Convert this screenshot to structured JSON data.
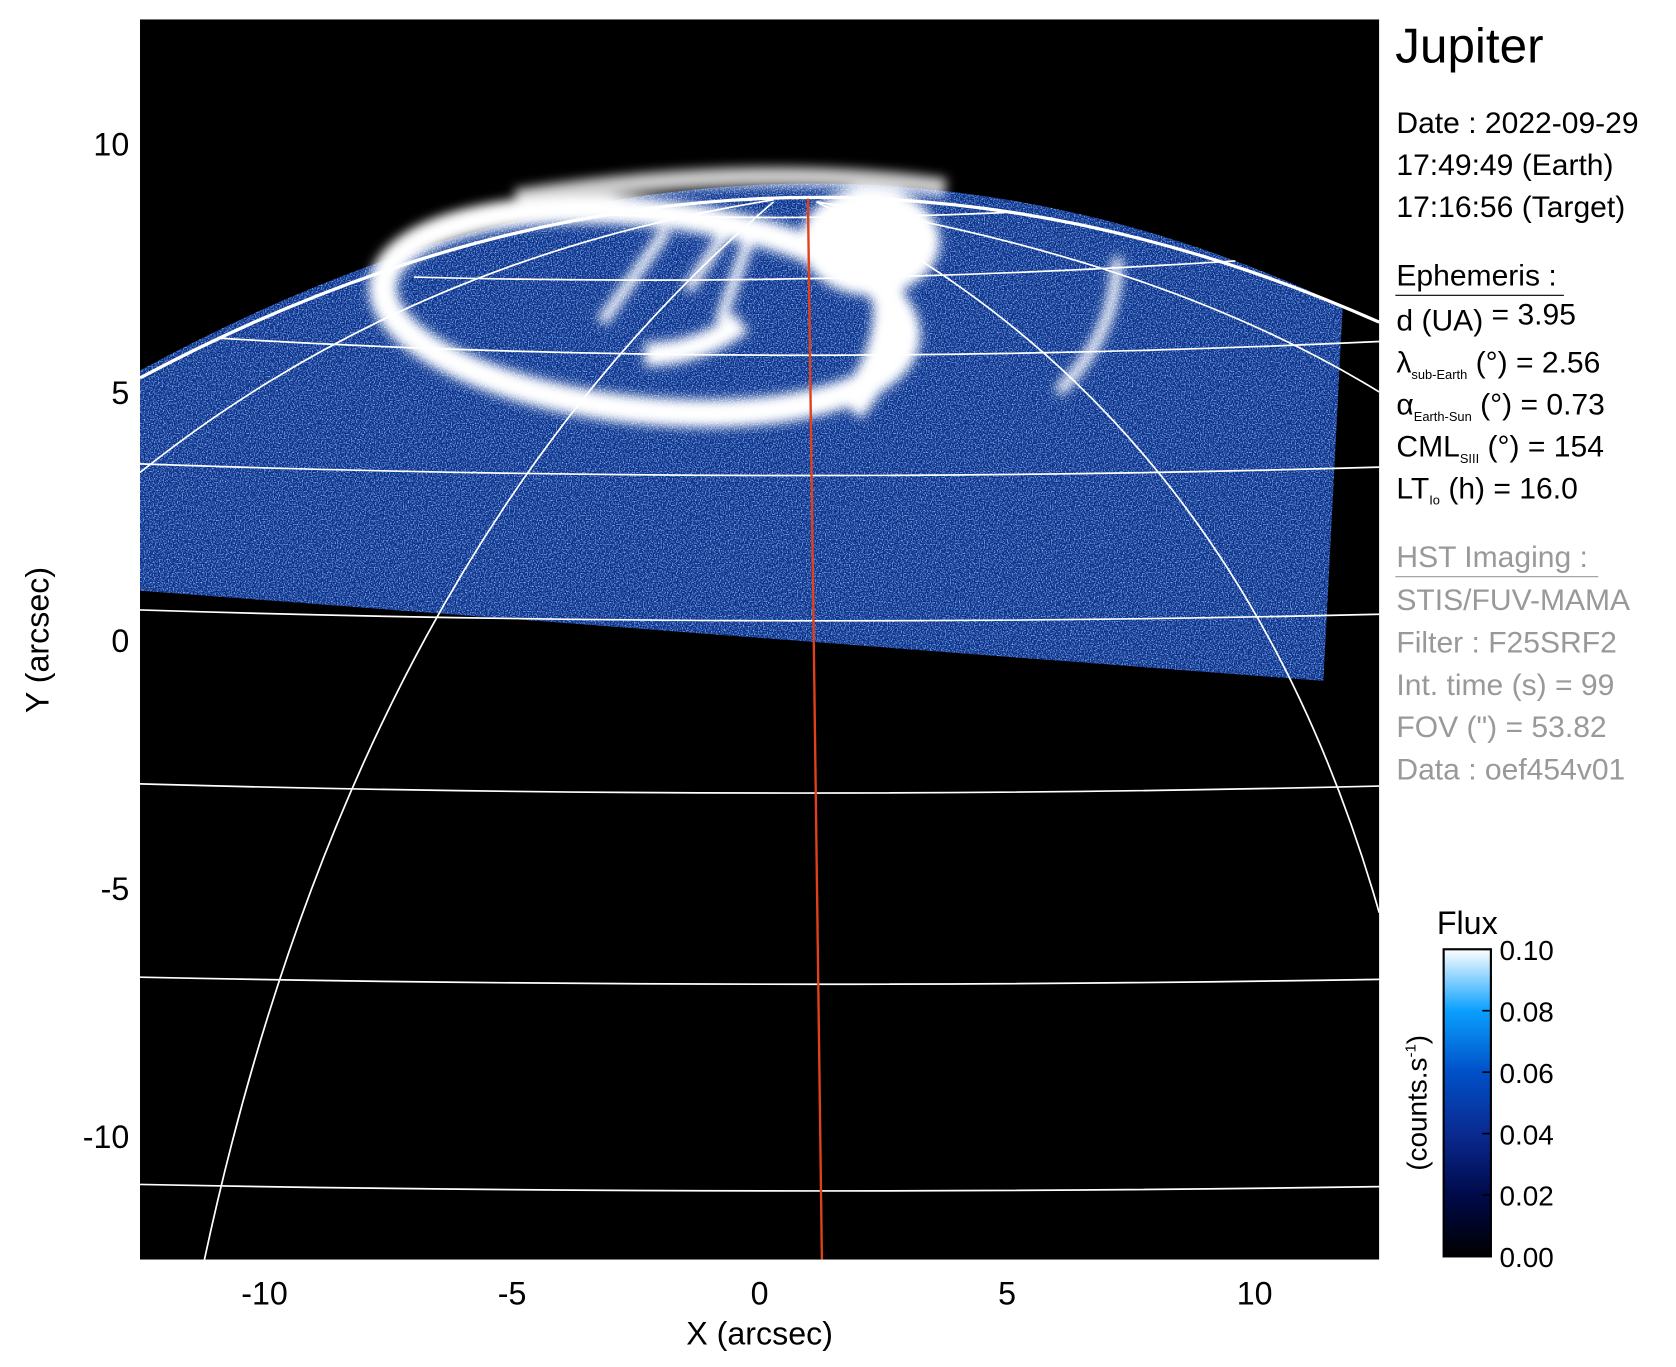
{
  "chart_data": {
    "type": "heatmap",
    "title": "Jupiter",
    "xlabel": "X (arcsec)",
    "ylabel": "Y (arcsec)",
    "xlim": [
      -12.5,
      12.5
    ],
    "ylim": [
      -12.5,
      12.5
    ],
    "xticks": [
      -10,
      -5,
      0,
      5,
      10
    ],
    "yticks": [
      -10,
      -5,
      0,
      5,
      10
    ],
    "grid": "planetographic latitude/longitude grid overlaid in white, central meridian in red",
    "colors": {
      "grid": "#ffffff",
      "meridian": "#e0401a",
      "background": "#000000"
    },
    "colorbar": {
      "title": "Flux",
      "label": "(counts.s",
      "label_sup": "-1",
      "label_close": ")",
      "range": [
        0.0,
        0.1
      ],
      "ticks": [
        "0.00",
        "0.02",
        "0.04",
        "0.06",
        "0.08",
        "0.10"
      ],
      "colormap": [
        "#000000",
        "#000a4a",
        "#0a2a90",
        "#0050c8",
        "#0aa0ff",
        "#ffffff"
      ]
    }
  },
  "info": {
    "title": "Jupiter",
    "date": "Date : 2022-09-29",
    "time_earth": "17:49:49 (Earth)",
    "time_target": "17:16:56 (Target)",
    "ephemeris_heading": "Ephemeris :",
    "ephemeris": [
      {
        "symbol": "d (UA)",
        "sub": "",
        "rest": "    = 3.95"
      },
      {
        "symbol": "λ",
        "sub": "sub-Earth",
        "rest": " (°) = 2.56"
      },
      {
        "symbol": "α",
        "sub": "Earth-Sun",
        "rest": " (°) = 0.73"
      },
      {
        "symbol": "CML",
        "sub": "SIII",
        "rest": " (°) = 154"
      },
      {
        "symbol": "LT",
        "sub": "Io",
        "rest": " (h) = 16.0"
      }
    ],
    "hst_heading": "HST Imaging :",
    "hst": [
      "STIS/FUV-MAMA",
      "Filter : F25SRF2",
      "Int. time (s) = 99",
      "FOV (\") = 53.82",
      "Data : oef454v01"
    ]
  }
}
